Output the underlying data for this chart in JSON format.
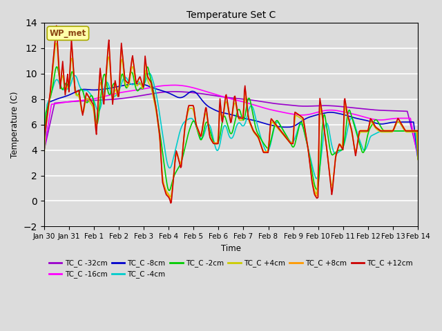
{
  "title": "Temperature Set C",
  "xlabel": "Time",
  "ylabel": "Temperature (C)",
  "ylim": [
    -2,
    14
  ],
  "xlim": [
    0,
    15
  ],
  "x_tick_labels": [
    "Jan 30",
    "Jan 31",
    "Feb 1",
    "Feb 2",
    "Feb 3",
    "Feb 4",
    "Feb 5",
    "Feb 6",
    "Feb 7",
    "Feb 8",
    "Feb 9",
    "Feb 10",
    "Feb 11",
    "Feb 12",
    "Feb 13",
    "Feb 14"
  ],
  "x_tick_positions": [
    0,
    1,
    2,
    3,
    4,
    5,
    6,
    7,
    8,
    9,
    10,
    11,
    12,
    13,
    14,
    15
  ],
  "yticks": [
    -2,
    0,
    2,
    4,
    6,
    8,
    10,
    12,
    14
  ],
  "bg_color": "#dcdcdc",
  "annotation_text": "WP_met",
  "annotation_color": "#8B4513",
  "annotation_bg": "#ffffaa",
  "annotation_edge": "#aaaa00",
  "series": [
    {
      "label": "TC_C -32cm",
      "color": "#9900cc"
    },
    {
      "label": "TC_C -16cm",
      "color": "#ff00ff"
    },
    {
      "label": "TC_C -8cm",
      "color": "#0000cc"
    },
    {
      "label": "TC_C -4cm",
      "color": "#00cccc"
    },
    {
      "label": "TC_C -2cm",
      "color": "#00cc00"
    },
    {
      "label": "TC_C +4cm",
      "color": "#cccc00"
    },
    {
      "label": "TC_C +8cm",
      "color": "#ff9900"
    },
    {
      "label": "TC_C +12cm",
      "color": "#cc0000"
    }
  ],
  "legend_ncol": 6,
  "legend_row2_ncol": 2
}
